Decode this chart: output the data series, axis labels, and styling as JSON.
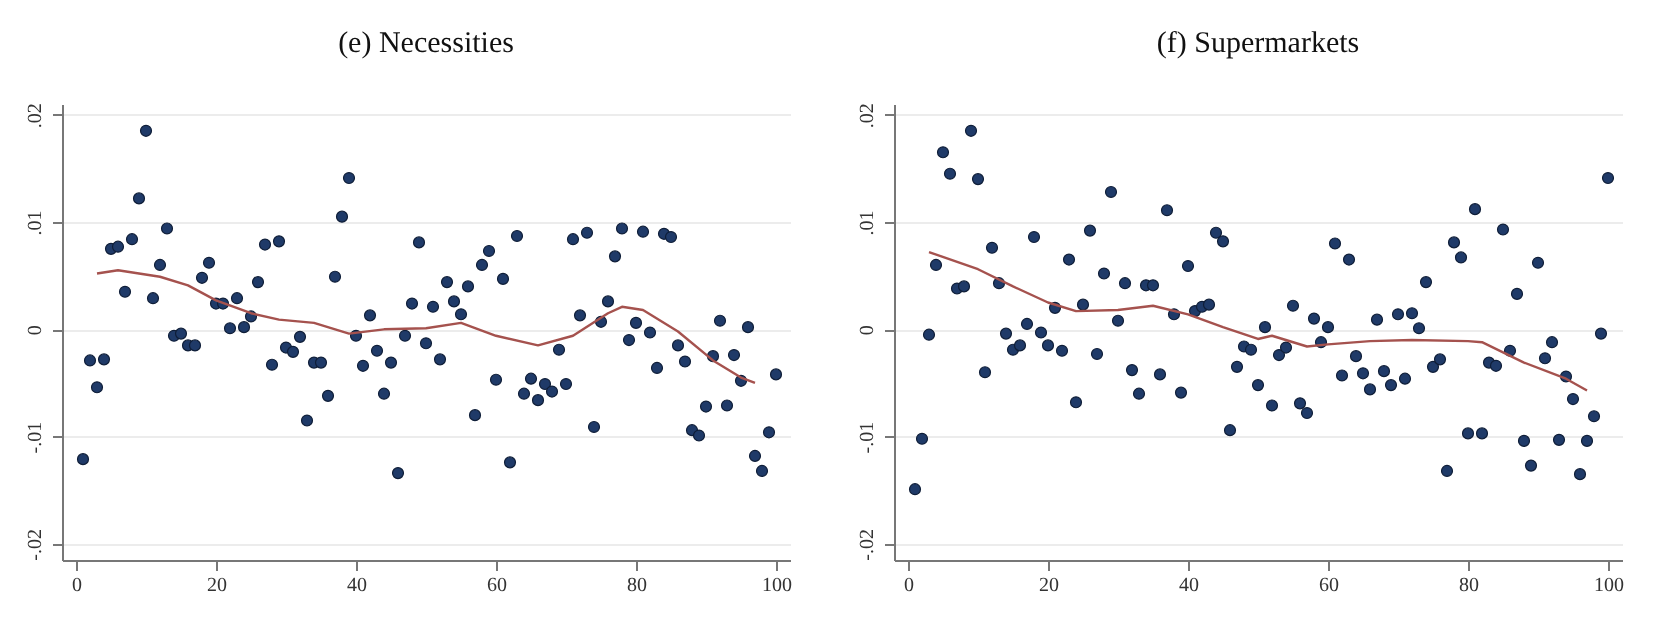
{
  "chart_data": [
    {
      "type": "scatter",
      "title": "(e) Necessities",
      "x": [
        1,
        2,
        3,
        4,
        5,
        6,
        7,
        8,
        9,
        10,
        11,
        12,
        13,
        14,
        15,
        16,
        17,
        18,
        19,
        20,
        21,
        22,
        23,
        24,
        25,
        26,
        27,
        28,
        29,
        30,
        31,
        32,
        33,
        34,
        35,
        36,
        37,
        38,
        39,
        40,
        41,
        42,
        43,
        44,
        45,
        46,
        47,
        48,
        49,
        50,
        51,
        52,
        53,
        54,
        55,
        56,
        57,
        58,
        59,
        60,
        61,
        62,
        63,
        64,
        65,
        66,
        67,
        68,
        69,
        70,
        71,
        72,
        73,
        74,
        75,
        76,
        77,
        78,
        79,
        80,
        81,
        82,
        83,
        84,
        85,
        86,
        87,
        88,
        89,
        90,
        91,
        92,
        93,
        94,
        95,
        96,
        97,
        98,
        99,
        100
      ],
      "series": [
        {
          "marker": "circle",
          "color": "#1f3a68",
          "values": [
            -0.0121,
            -0.0029,
            -0.0054,
            -0.0028,
            0.0075,
            0.0077,
            0.0035,
            0.0084,
            0.0122,
            0.0185,
            0.0029,
            0.006,
            0.0094,
            -0.0006,
            -0.0004,
            -0.0015,
            -0.0015,
            0.0048,
            0.0062,
            0.0024,
            0.0024,
            0.0001,
            0.0029,
            0.0002,
            0.0012,
            0.0044,
            0.0079,
            -0.0033,
            0.0082,
            -0.0017,
            -0.0021,
            -0.0007,
            -0.0085,
            -0.0031,
            -0.0031,
            -0.0062,
            0.0049,
            0.0105,
            0.0141,
            -0.0006,
            -0.0034,
            0.0013,
            -0.002,
            -0.006,
            -0.0031,
            -0.0134,
            -0.0006,
            0.0024,
            0.0081,
            -0.0013,
            0.0021,
            -0.0028,
            0.0044,
            0.0026,
            0.0014,
            0.004,
            -0.008,
            0.006,
            0.0073,
            -0.0047,
            0.0047,
            -0.0124,
            0.0087,
            -0.006,
            -0.0046,
            -0.0066,
            -0.0051,
            -0.0058,
            -0.0019,
            -0.0051,
            0.0084,
            0.0013,
            0.009,
            -0.0091,
            0.0007,
            0.0026,
            0.0068,
            0.0094,
            -0.001,
            0.0006,
            0.0091,
            -0.0003,
            -0.0036,
            0.0089,
            0.0086,
            -0.0015,
            -0.003,
            -0.0094,
            -0.0099,
            -0.0072,
            -0.0025,
            0.0008,
            -0.0071,
            -0.0024,
            -0.0048,
            0.0002,
            -0.0118,
            -0.0132,
            -0.0096,
            -0.0042
          ]
        },
        {
          "type": "line",
          "color": "#a5524e",
          "x": [
            3,
            6,
            12,
            16,
            20,
            25,
            29,
            34,
            39,
            44,
            50,
            55,
            60,
            66,
            71,
            76,
            78,
            81,
            86,
            91,
            95,
            97
          ],
          "values": [
            0.0052,
            0.0055,
            0.0049,
            0.0041,
            0.0027,
            0.0015,
            0.0009,
            0.0006,
            -0.0004,
            0,
            0.0001,
            0.0006,
            -0.0006,
            -0.0015,
            -0.0006,
            0.0015,
            0.0021,
            0.0018,
            -0.0002,
            -0.0029,
            -0.0045,
            -0.005
          ]
        }
      ],
      "xlim": [
        -2,
        102
      ],
      "ylim": [
        -0.0215,
        0.021
      ],
      "xticks": [
        0,
        20,
        40,
        60,
        80,
        100
      ],
      "yticks": [
        {
          "value": -0.02,
          "label": "-.02"
        },
        {
          "value": -0.01,
          "label": "-.01"
        },
        {
          "value": 0,
          "label": "0"
        },
        {
          "value": 0.01,
          "label": ".01"
        },
        {
          "value": 0.02,
          "label": ".02"
        }
      ],
      "grid": "y"
    },
    {
      "type": "scatter",
      "title": "(f) Supermarkets",
      "x": [
        1,
        2,
        3,
        4,
        5,
        6,
        7,
        8,
        9,
        10,
        11,
        12,
        13,
        14,
        15,
        16,
        17,
        18,
        19,
        20,
        21,
        22,
        23,
        24,
        25,
        26,
        27,
        28,
        29,
        30,
        31,
        32,
        33,
        34,
        35,
        36,
        37,
        38,
        39,
        40,
        41,
        42,
        43,
        44,
        45,
        46,
        47,
        48,
        49,
        50,
        51,
        52,
        53,
        54,
        55,
        56,
        57,
        58,
        59,
        60,
        61,
        62,
        63,
        64,
        65,
        66,
        67,
        68,
        69,
        70,
        71,
        72,
        73,
        74,
        75,
        76,
        77,
        78,
        79,
        80,
        81,
        82,
        83,
        84,
        85,
        86,
        87,
        88,
        89,
        90,
        91,
        92,
        93,
        94,
        95,
        96,
        97,
        98,
        99,
        100
      ],
      "series": [
        {
          "marker": "circle",
          "color": "#1f3a68",
          "values": [
            -0.0149,
            -0.0102,
            -0.0005,
            0.006,
            0.0165,
            0.0145,
            0.0038,
            0.004,
            0.0185,
            0.014,
            -0.004,
            0.0076,
            0.0043,
            -0.0004,
            -0.0019,
            -0.0015,
            0.0005,
            0.0086,
            -0.0003,
            -0.0015,
            0.002,
            -0.002,
            0.0065,
            -0.0068,
            0.0023,
            0.0092,
            -0.0023,
            0.0052,
            0.0128,
            0.0008,
            0.0043,
            -0.0038,
            -0.006,
            0.0041,
            0.0041,
            -0.0042,
            0.0111,
            0.0014,
            -0.0059,
            0.0059,
            0.0017,
            0.0021,
            0.0023,
            0.009,
            0.0082,
            -0.0094,
            -0.0035,
            -0.0016,
            -0.0019,
            -0.0052,
            0.0002,
            -0.0071,
            -0.0024,
            -0.0017,
            0.0022,
            -0.0069,
            -0.0078,
            0.001,
            -0.0012,
            0.0002,
            0.008,
            -0.0043,
            0.0065,
            -0.0025,
            -0.0041,
            -0.0056,
            0.0009,
            -0.0039,
            -0.0052,
            0.0014,
            -0.0046,
            0.0015,
            0.0001,
            0.0044,
            -0.0035,
            -0.0028,
            -0.0132,
            0.0081,
            0.0067,
            -0.0097,
            0.0112,
            -0.0097,
            -0.0031,
            -0.0034,
            0.0093,
            -0.002,
            0.0033,
            -0.0104,
            -0.0127,
            0.0062,
            -0.0027,
            -0.0012,
            -0.0103,
            -0.0044,
            -0.0065,
            -0.0135,
            -0.0104,
            -0.0081,
            -0.0004,
            0.0141
          ]
        },
        {
          "type": "line",
          "color": "#a5524e",
          "x": [
            3,
            10,
            15,
            20,
            24,
            30,
            35,
            40,
            45,
            50,
            52,
            57,
            60,
            66,
            72,
            80,
            82,
            88,
            94,
            97
          ],
          "values": [
            0.0072,
            0.0056,
            0.004,
            0.0025,
            0.0017,
            0.0018,
            0.0022,
            0.0014,
            0.0002,
            -0.0009,
            -0.0006,
            -0.0016,
            -0.0014,
            -0.0011,
            -0.001,
            -0.0011,
            -0.0012,
            -0.0031,
            -0.0046,
            -0.0057
          ]
        }
      ],
      "xlim": [
        -2,
        102
      ],
      "ylim": [
        -0.0215,
        0.021
      ],
      "xticks": [
        0,
        20,
        40,
        60,
        80,
        100
      ],
      "yticks": [
        {
          "value": -0.02,
          "label": "-.02"
        },
        {
          "value": -0.01,
          "label": "-.01"
        },
        {
          "value": 0,
          "label": "0"
        },
        {
          "value": 0.01,
          "label": ".01"
        },
        {
          "value": 0.02,
          "label": ".02"
        }
      ],
      "grid": "y"
    }
  ]
}
